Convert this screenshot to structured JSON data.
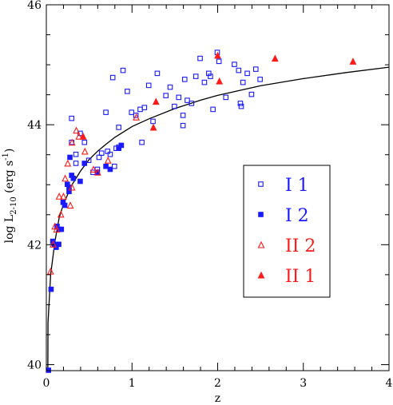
{
  "chart_data": {
    "type": "scatter",
    "title": "",
    "xlabel": "z",
    "ylabel": {
      "main": "log L",
      "subscript": "2-10",
      "unit_open": " (erg s",
      "unit_exp": "-1",
      "unit_close": ")"
    },
    "xlim": [
      0,
      4
    ],
    "ylim": [
      39.9,
      46
    ],
    "xticks": [
      0,
      1,
      2,
      3,
      4
    ],
    "yticks": [
      40,
      42,
      44,
      46
    ],
    "grid": false,
    "legend_position": "right",
    "colors": {
      "blue": "#1a1aff",
      "red": "#ff1a1a",
      "axis": "#000000"
    },
    "curve": {
      "name": "",
      "x": [
        0.02,
        0.05,
        0.1,
        0.15,
        0.2,
        0.3,
        0.4,
        0.5,
        0.6,
        0.7,
        0.8,
        1.0,
        1.2,
        1.5,
        1.8,
        2.0,
        2.5,
        3.0,
        3.5,
        4.0
      ],
      "y": [
        40.7,
        41.5,
        42.05,
        42.45,
        42.68,
        43.0,
        43.23,
        43.42,
        43.56,
        43.68,
        43.79,
        43.97,
        44.1,
        44.27,
        44.41,
        44.49,
        44.65,
        44.77,
        44.87,
        44.96
      ]
    },
    "series": [
      {
        "name": "I 1",
        "marker": "open-square",
        "color": "#1a1aff",
        "x": [
          0.3,
          0.35,
          0.4,
          0.45,
          0.55,
          0.6,
          0.62,
          0.7,
          0.72,
          0.75,
          0.78,
          0.8,
          0.85,
          0.9,
          0.95,
          1.0,
          1.05,
          1.1,
          1.12,
          1.15,
          1.2,
          1.25,
          1.3,
          1.4,
          1.45,
          1.5,
          1.55,
          1.6,
          1.62,
          1.65,
          1.7,
          1.75,
          1.8,
          1.85,
          1.9,
          1.92,
          1.95,
          2.0,
          2.02,
          2.1,
          2.2,
          2.25,
          2.28,
          2.3,
          2.35,
          2.4,
          2.45,
          2.5,
          0.85,
          0.82,
          0.3,
          0.35,
          1.6,
          2.27,
          0.65,
          0.5
        ],
        "y": [
          44.1,
          43.35,
          43.85,
          43.7,
          43.2,
          43.25,
          43.45,
          44.2,
          43.55,
          43.5,
          44.78,
          43.3,
          43.95,
          44.9,
          44.55,
          44.2,
          44.15,
          44.25,
          43.7,
          44.28,
          44.65,
          44.05,
          44.85,
          44.48,
          44.62,
          44.3,
          44.45,
          44.15,
          44.75,
          44.4,
          44.35,
          44.8,
          45.1,
          44.7,
          44.85,
          44.8,
          44.25,
          45.2,
          45.05,
          44.45,
          45.0,
          44.9,
          44.3,
          44.7,
          44.85,
          44.5,
          44.92,
          44.75,
          43.62,
          43.6,
          43.7,
          43.5,
          43.98,
          44.35,
          43.52,
          43.4
        ]
      },
      {
        "name": "I 2",
        "marker": "filled-square",
        "color": "#1a1aff",
        "x": [
          0.03,
          0.06,
          0.08,
          0.1,
          0.12,
          0.13,
          0.15,
          0.16,
          0.18,
          0.2,
          0.22,
          0.25,
          0.27,
          0.28,
          0.3,
          0.32,
          0.4,
          0.45,
          0.6,
          0.7,
          0.75,
          0.85,
          0.88,
          0.27
        ],
        "y": [
          39.9,
          41.25,
          42.05,
          42.0,
          41.95,
          42.3,
          42.0,
          42.25,
          42.25,
          42.7,
          42.65,
          43.0,
          42.95,
          43.45,
          43.15,
          43.1,
          43.05,
          43.35,
          43.2,
          43.3,
          43.25,
          43.6,
          43.65,
          42.88
        ]
      },
      {
        "name": "II 2",
        "marker": "open-triangle",
        "color": "#ff1a1a",
        "x": [
          0.05,
          0.08,
          0.1,
          0.12,
          0.15,
          0.17,
          0.2,
          0.22,
          0.25,
          0.28,
          0.3,
          0.35,
          0.38,
          0.45,
          0.55,
          0.6,
          0.72,
          1.05,
          0.3
        ],
        "y": [
          41.55,
          42.0,
          42.3,
          42.25,
          42.8,
          42.5,
          42.8,
          43.1,
          43.35,
          42.65,
          42.95,
          43.9,
          43.8,
          43.55,
          43.25,
          43.2,
          43.4,
          44.12,
          43.7
        ]
      },
      {
        "name": "II 1",
        "marker": "filled-triangle",
        "color": "#ff1a1a",
        "x": [
          0.43,
          1.28,
          1.25,
          2.0,
          2.02,
          2.67,
          3.58
        ],
        "y": [
          43.8,
          44.38,
          43.95,
          45.15,
          44.72,
          45.1,
          45.05
        ]
      }
    ],
    "legend": [
      {
        "label": "I 1",
        "color": "#1a1aff",
        "marker": "open-square"
      },
      {
        "label": "I 2",
        "color": "#1a1aff",
        "marker": "filled-square"
      },
      {
        "label": "II 2",
        "color": "#ff1a1a",
        "marker": "open-triangle"
      },
      {
        "label": "II 1",
        "color": "#ff1a1a",
        "marker": "filled-triangle"
      }
    ]
  }
}
